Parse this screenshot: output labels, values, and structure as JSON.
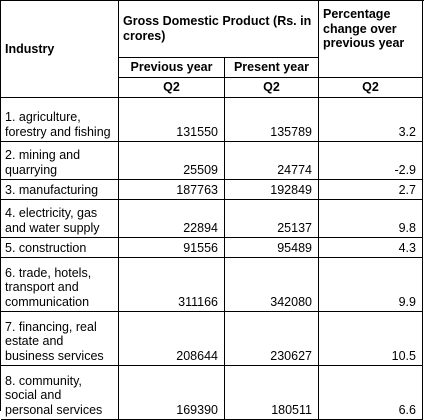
{
  "header": {
    "industry": "Industry",
    "gdp": "Gross Domestic Product (Rs. in crores)",
    "pct": "Percentage change over previous year",
    "previous_year": "Previous year",
    "present_year": "Present year",
    "q_prev": "Q2",
    "q_pres": "Q2",
    "q_pct": "Q2"
  },
  "rows": [
    {
      "industry": "1. agriculture,\nforestry and fishing",
      "previous": "131550",
      "present": "135789",
      "pct": "3.2"
    },
    {
      "industry": "2. mining and\nquarrying",
      "previous": "25509",
      "present": "24774",
      "pct": "-2.9"
    },
    {
      "industry": "3. manufacturing",
      "previous": "187763",
      "present": "192849",
      "pct": "2.7"
    },
    {
      "industry": "4. electricity, gas\nand water supply",
      "previous": "22894",
      "present": "25137",
      "pct": "9.8"
    },
    {
      "industry": "5. construction",
      "previous": "91556",
      "present": "95489",
      "pct": "4.3"
    },
    {
      "industry": "6. trade, hotels,\ntransport and\ncommunication",
      "previous": "311166",
      "present": "342080",
      "pct": "9.9"
    },
    {
      "industry": "7. financing, real\nestate and\nbusiness services",
      "previous": "208644",
      "present": "230627",
      "pct": "10.5"
    },
    {
      "industry": "8. community,\nsocial and\npersonal services",
      "previous": "169390",
      "present": "180511",
      "pct": "6.6"
    }
  ]
}
